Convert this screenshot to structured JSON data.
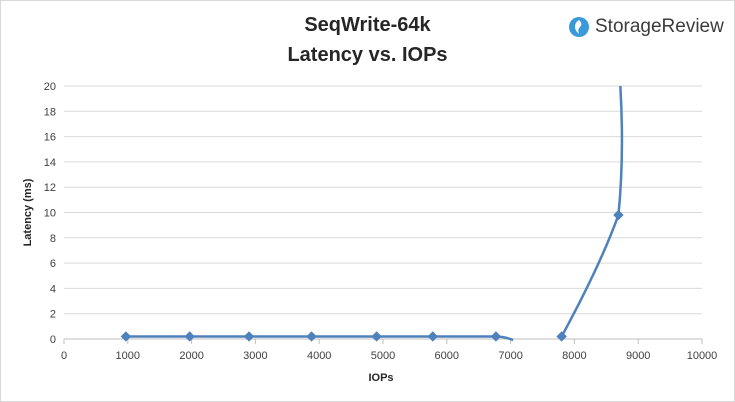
{
  "chart_data": {
    "type": "line",
    "title": "SeqWrite-64k",
    "subtitle": "Latency vs. IOPs",
    "xlabel": "IOPs",
    "ylabel": "Latency (ms)",
    "xlim": [
      0,
      10000
    ],
    "ylim": [
      0,
      20
    ],
    "x_ticks": [
      0,
      1000,
      2000,
      3000,
      4000,
      5000,
      6000,
      7000,
      8000,
      9000,
      10000
    ],
    "y_ticks": [
      0,
      2,
      4,
      6,
      8,
      10,
      12,
      14,
      16,
      18,
      20
    ],
    "grid": "horizontal",
    "legend": "none",
    "series": [
      {
        "name": "",
        "color": "#4f81bd",
        "points": [
          {
            "x": 970,
            "y": 0.2
          },
          {
            "x": 1970,
            "y": 0.2
          },
          {
            "x": 2900,
            "y": 0.2
          },
          {
            "x": 3880,
            "y": 0.2
          },
          {
            "x": 4900,
            "y": 0.2
          },
          {
            "x": 5780,
            "y": 0.2
          },
          {
            "x": 6770,
            "y": 0.2
          },
          {
            "x": 7800,
            "y": 0.2
          },
          {
            "x": 8690,
            "y": 9.8
          },
          {
            "x": 8720,
            "y": 20
          }
        ]
      }
    ]
  },
  "brand": {
    "name": "StorageReview",
    "logo_icon": "storagereview-logo-icon",
    "logo_color": "#3a9ad9"
  }
}
